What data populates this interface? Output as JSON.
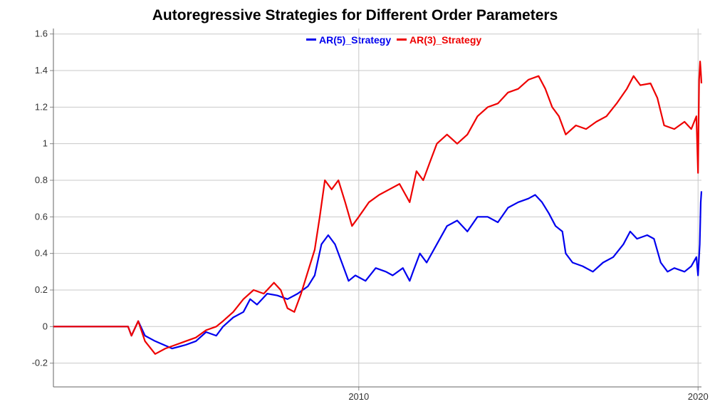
{
  "chart_data": {
    "type": "line",
    "title": "Autoregressive Strategies for Different Order Parameters",
    "xlabel": "",
    "ylabel": "",
    "ylim": [
      -0.33,
      1.63
    ],
    "xlim": [
      2001.0,
      2020.1
    ],
    "grid": true,
    "legend_position": "top-center",
    "x_ticks": [
      {
        "value": 2010,
        "label": "2010"
      },
      {
        "value": 2020,
        "label": "2020"
      }
    ],
    "y_ticks": [
      {
        "value": -0.2,
        "label": "-0.2"
      },
      {
        "value": 0,
        "label": "0"
      },
      {
        "value": 0.2,
        "label": "0.2"
      },
      {
        "value": 0.4,
        "label": "0.4"
      },
      {
        "value": 0.6,
        "label": "0.6"
      },
      {
        "value": 0.8,
        "label": "0.8"
      },
      {
        "value": 1,
        "label": "1"
      },
      {
        "value": 1.2,
        "label": "1.2"
      },
      {
        "value": 1.4,
        "label": "1.4"
      },
      {
        "value": 1.6,
        "label": "1.6"
      }
    ],
    "series": [
      {
        "name": "AR(5)_Strategy",
        "color": "#0000ee",
        "points": [
          [
            2001.0,
            0.0
          ],
          [
            2003.2,
            0.0
          ],
          [
            2003.3,
            -0.05
          ],
          [
            2003.5,
            0.03
          ],
          [
            2003.7,
            -0.05
          ],
          [
            2004.0,
            -0.08
          ],
          [
            2004.5,
            -0.12
          ],
          [
            2004.9,
            -0.1
          ],
          [
            2005.2,
            -0.08
          ],
          [
            2005.5,
            -0.03
          ],
          [
            2005.8,
            -0.05
          ],
          [
            2006.0,
            0.0
          ],
          [
            2006.3,
            0.05
          ],
          [
            2006.6,
            0.08
          ],
          [
            2006.8,
            0.15
          ],
          [
            2007.0,
            0.12
          ],
          [
            2007.3,
            0.18
          ],
          [
            2007.6,
            0.17
          ],
          [
            2007.9,
            0.15
          ],
          [
            2008.2,
            0.18
          ],
          [
            2008.5,
            0.22
          ],
          [
            2008.7,
            0.28
          ],
          [
            2008.9,
            0.45
          ],
          [
            2009.1,
            0.5
          ],
          [
            2009.3,
            0.45
          ],
          [
            2009.5,
            0.35
          ],
          [
            2009.7,
            0.25
          ],
          [
            2009.9,
            0.28
          ],
          [
            2010.2,
            0.25
          ],
          [
            2010.5,
            0.32
          ],
          [
            2010.8,
            0.3
          ],
          [
            2011.0,
            0.28
          ],
          [
            2011.3,
            0.32
          ],
          [
            2011.5,
            0.25
          ],
          [
            2011.6,
            0.3
          ],
          [
            2011.8,
            0.4
          ],
          [
            2012.0,
            0.35
          ],
          [
            2012.3,
            0.45
          ],
          [
            2012.6,
            0.55
          ],
          [
            2012.9,
            0.58
          ],
          [
            2013.2,
            0.52
          ],
          [
            2013.5,
            0.6
          ],
          [
            2013.8,
            0.6
          ],
          [
            2014.1,
            0.57
          ],
          [
            2014.4,
            0.65
          ],
          [
            2014.7,
            0.68
          ],
          [
            2015.0,
            0.7
          ],
          [
            2015.2,
            0.72
          ],
          [
            2015.4,
            0.68
          ],
          [
            2015.6,
            0.62
          ],
          [
            2015.8,
            0.55
          ],
          [
            2016.0,
            0.52
          ],
          [
            2016.1,
            0.4
          ],
          [
            2016.3,
            0.35
          ],
          [
            2016.6,
            0.33
          ],
          [
            2016.9,
            0.3
          ],
          [
            2017.2,
            0.35
          ],
          [
            2017.5,
            0.38
          ],
          [
            2017.8,
            0.45
          ],
          [
            2018.0,
            0.52
          ],
          [
            2018.2,
            0.48
          ],
          [
            2018.5,
            0.5
          ],
          [
            2018.7,
            0.48
          ],
          [
            2018.9,
            0.35
          ],
          [
            2019.1,
            0.3
          ],
          [
            2019.3,
            0.32
          ],
          [
            2019.6,
            0.3
          ],
          [
            2019.8,
            0.33
          ],
          [
            2019.95,
            0.38
          ],
          [
            2020.0,
            0.28
          ],
          [
            2020.05,
            0.45
          ],
          [
            2020.08,
            0.68
          ],
          [
            2020.1,
            0.74
          ]
        ]
      },
      {
        "name": "AR(3)_Strategy",
        "color": "#ee0000",
        "points": [
          [
            2001.0,
            0.0
          ],
          [
            2003.2,
            0.0
          ],
          [
            2003.3,
            -0.05
          ],
          [
            2003.5,
            0.03
          ],
          [
            2003.7,
            -0.08
          ],
          [
            2004.0,
            -0.15
          ],
          [
            2004.3,
            -0.12
          ],
          [
            2004.6,
            -0.1
          ],
          [
            2004.9,
            -0.08
          ],
          [
            2005.2,
            -0.06
          ],
          [
            2005.5,
            -0.02
          ],
          [
            2005.8,
            0.0
          ],
          [
            2006.0,
            0.03
          ],
          [
            2006.3,
            0.08
          ],
          [
            2006.6,
            0.15
          ],
          [
            2006.9,
            0.2
          ],
          [
            2007.2,
            0.18
          ],
          [
            2007.5,
            0.24
          ],
          [
            2007.7,
            0.2
          ],
          [
            2007.9,
            0.1
          ],
          [
            2008.1,
            0.08
          ],
          [
            2008.3,
            0.18
          ],
          [
            2008.5,
            0.3
          ],
          [
            2008.7,
            0.42
          ],
          [
            2008.85,
            0.6
          ],
          [
            2009.0,
            0.8
          ],
          [
            2009.2,
            0.75
          ],
          [
            2009.4,
            0.8
          ],
          [
            2009.6,
            0.68
          ],
          [
            2009.8,
            0.55
          ],
          [
            2010.0,
            0.6
          ],
          [
            2010.3,
            0.68
          ],
          [
            2010.6,
            0.72
          ],
          [
            2010.9,
            0.75
          ],
          [
            2011.2,
            0.78
          ],
          [
            2011.5,
            0.68
          ],
          [
            2011.7,
            0.85
          ],
          [
            2011.9,
            0.8
          ],
          [
            2012.1,
            0.9
          ],
          [
            2012.3,
            1.0
          ],
          [
            2012.6,
            1.05
          ],
          [
            2012.9,
            1.0
          ],
          [
            2013.2,
            1.05
          ],
          [
            2013.5,
            1.15
          ],
          [
            2013.8,
            1.2
          ],
          [
            2014.1,
            1.22
          ],
          [
            2014.4,
            1.28
          ],
          [
            2014.7,
            1.3
          ],
          [
            2015.0,
            1.35
          ],
          [
            2015.3,
            1.37
          ],
          [
            2015.5,
            1.3
          ],
          [
            2015.7,
            1.2
          ],
          [
            2015.9,
            1.15
          ],
          [
            2016.1,
            1.05
          ],
          [
            2016.4,
            1.1
          ],
          [
            2016.7,
            1.08
          ],
          [
            2017.0,
            1.12
          ],
          [
            2017.3,
            1.15
          ],
          [
            2017.6,
            1.22
          ],
          [
            2017.9,
            1.3
          ],
          [
            2018.1,
            1.37
          ],
          [
            2018.3,
            1.32
          ],
          [
            2018.6,
            1.33
          ],
          [
            2018.8,
            1.25
          ],
          [
            2019.0,
            1.1
          ],
          [
            2019.3,
            1.08
          ],
          [
            2019.6,
            1.12
          ],
          [
            2019.8,
            1.08
          ],
          [
            2019.95,
            1.15
          ],
          [
            2020.0,
            0.84
          ],
          [
            2020.03,
            1.35
          ],
          [
            2020.06,
            1.45
          ],
          [
            2020.08,
            1.4
          ],
          [
            2020.1,
            1.33
          ]
        ]
      }
    ]
  }
}
